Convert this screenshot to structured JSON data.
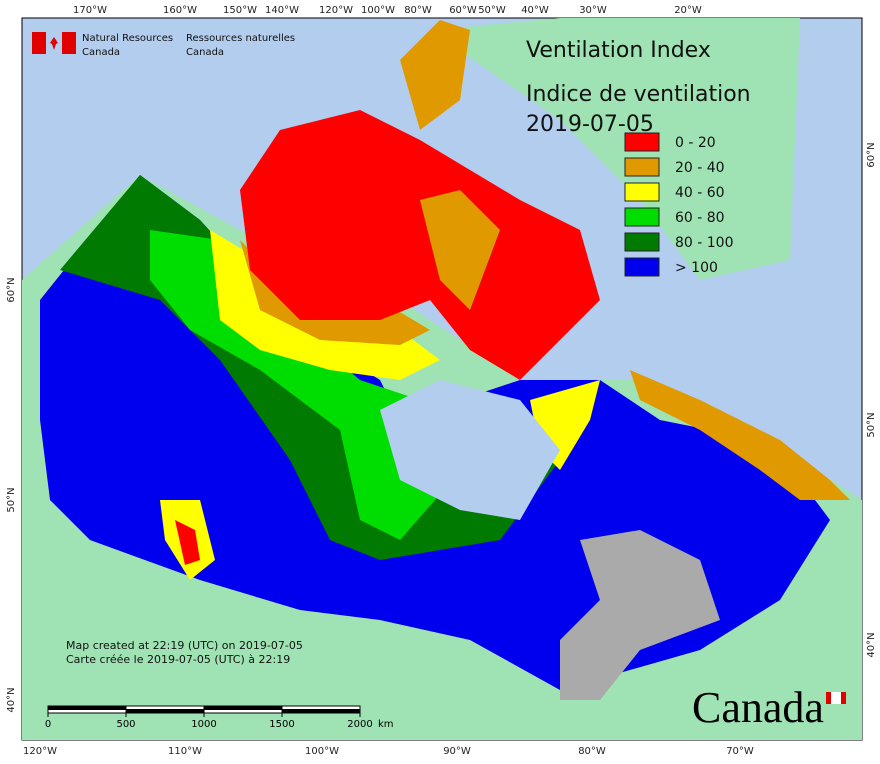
{
  "title": [
    "Ventilation Index",
    "Indice de ventilation",
    "2019-07-05"
  ],
  "agency": {
    "en": [
      "Natural Resources",
      "Canada"
    ],
    "fr": [
      "Ressources naturelles",
      "Canada"
    ]
  },
  "legend": [
    {
      "label": "0 - 20",
      "color": "#ff0000"
    },
    {
      "label": "20 - 40",
      "color": "#e09a00"
    },
    {
      "label": "40 - 60",
      "color": "#ffff00"
    },
    {
      "label": "60 - 80",
      "color": "#00dd00"
    },
    {
      "label": "80 - 100",
      "color": "#007a00"
    },
    {
      "label": "> 100",
      "color": "#0000ee"
    }
  ],
  "top_labels": [
    "170°W",
    "160°W",
    "150°W",
    "140°W",
    "120°W",
    "100°W",
    "80°W",
    "60°W",
    "50°W",
    "40°W",
    "30°W",
    "20°W"
  ],
  "bottom_labels": [
    "120°W",
    "110°W",
    "100°W",
    "90°W",
    "80°W",
    "70°W"
  ],
  "left_labels": [
    "60°N",
    "50°N",
    "40°N"
  ],
  "right_labels": [
    "60°N",
    "50°N",
    "40°N"
  ],
  "credits": [
    "Map created at 22:19 (UTC) on 2019-07-05",
    "Carte créée le 2019-07-05 (UTC) à 22:19"
  ],
  "scale": {
    "ticks": [
      0,
      500,
      1000,
      1500,
      2000
    ],
    "unit": "km"
  },
  "wordmark": "Canada"
}
